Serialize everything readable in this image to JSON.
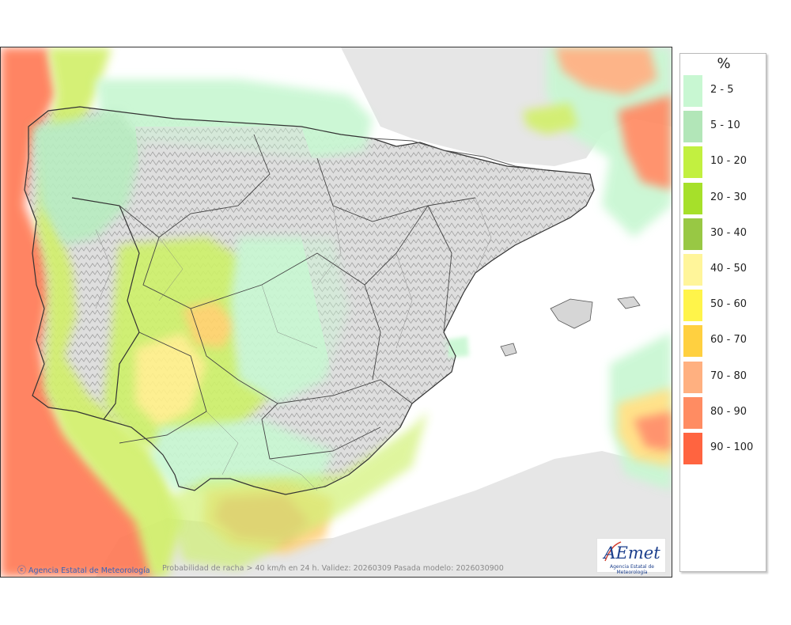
{
  "legend": {
    "title": "%",
    "items": [
      {
        "label": "2 - 5",
        "color": "#c8f7d2"
      },
      {
        "label": "5 - 10",
        "color": "#b2e6b8"
      },
      {
        "label": "10 - 20",
        "color": "#c2f040"
      },
      {
        "label": "20 - 30",
        "color": "#a6e02a"
      },
      {
        "label": "30 - 40",
        "color": "#98c844"
      },
      {
        "label": "40 - 50",
        "color": "#fff59a"
      },
      {
        "label": "50 - 60",
        "color": "#fff44a"
      },
      {
        "label": "60 - 70",
        "color": "#ffd040"
      },
      {
        "label": "70 - 80",
        "color": "#ffb080"
      },
      {
        "label": "80 - 90",
        "color": "#ff8c62"
      },
      {
        "label": "90 - 100",
        "color": "#ff6440"
      }
    ]
  },
  "credit": {
    "icon": "copyright-icon",
    "glyph": "ⓒ",
    "text": "Agencia Estatal de Meteorología"
  },
  "caption": "Probabilidad de racha > 40 km/h en 24 h. Validez: 20260309 Pasada modelo: 2026030900",
  "logo": {
    "mark": "AEmet",
    "subtitle": "Agencia Estatal de Meteorología"
  }
}
